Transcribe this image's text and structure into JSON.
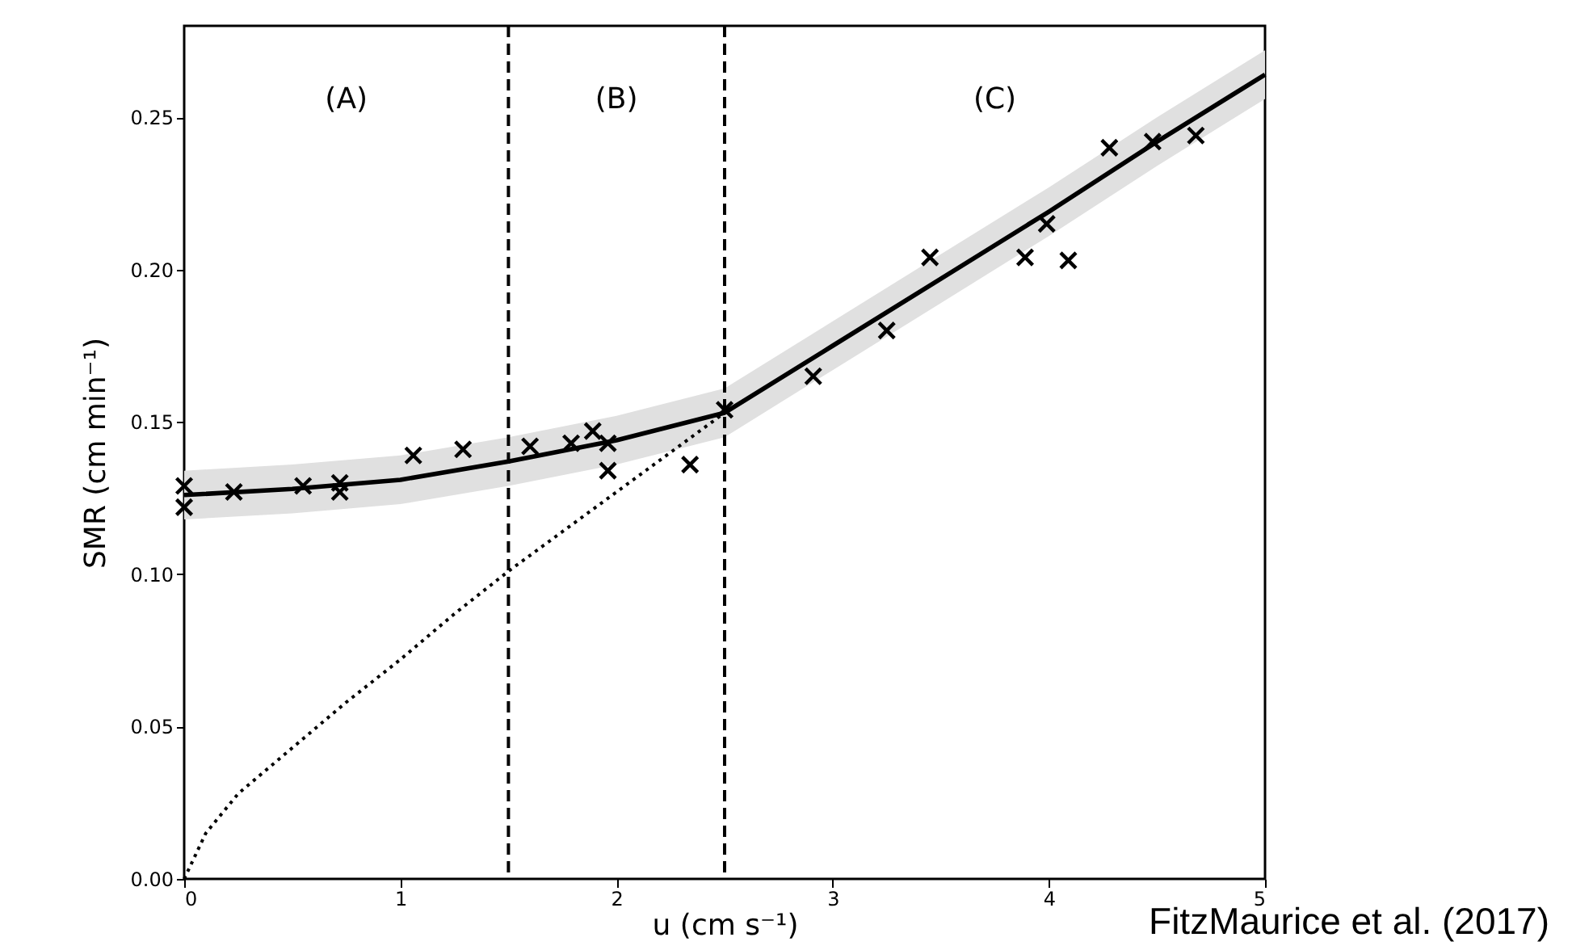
{
  "chart_data": {
    "type": "scatter",
    "xlabel": "u (cm s⁻¹)",
    "ylabel": "SMR (cm min⁻¹)",
    "xlim": [
      0,
      5
    ],
    "ylim": [
      0,
      0.28
    ],
    "xticks": [
      0,
      1,
      2,
      3,
      4,
      5
    ],
    "yticks": [
      {
        "value": 0,
        "label": "0.00"
      },
      {
        "value": 0.05,
        "label": "0.05"
      },
      {
        "value": 0.1,
        "label": "0.10"
      },
      {
        "value": 0.15,
        "label": "0.15"
      },
      {
        "value": 0.2,
        "label": "0.20"
      },
      {
        "value": 0.25,
        "label": "0.25"
      }
    ],
    "grid": false,
    "series": [
      {
        "type": "line",
        "color": "#000000",
        "x": [
          0,
          0.5,
          1,
          1.5,
          2,
          2.5,
          3,
          3.5,
          4,
          4.5,
          5
        ],
        "values": [
          0.126,
          0.128,
          0.131,
          0.137,
          0.144,
          0.153,
          0.175,
          0.197,
          0.219,
          0.242,
          0.264
        ],
        "lower": [
          0.118,
          0.12,
          0.123,
          0.129,
          0.136,
          0.145,
          0.167,
          0.189,
          0.211,
          0.234,
          0.256
        ],
        "upper": [
          0.134,
          0.136,
          0.139,
          0.145,
          0.152,
          0.161,
          0.183,
          0.205,
          0.227,
          0.25,
          0.272
        ],
        "line_style": "solid"
      },
      {
        "type": "line",
        "color": "#000000",
        "x": [
          0,
          0.1,
          0.25,
          0.5,
          0.75,
          1,
          1.25,
          1.5,
          2,
          2.5
        ],
        "values": [
          0,
          0.015,
          0.028,
          0.043,
          0.058,
          0.072,
          0.087,
          0.101,
          0.127,
          0.153
        ],
        "line_style": "dotted"
      },
      {
        "color": "#000000",
        "marker": "cross",
        "x": [
          0,
          0,
          0.23,
          0.55,
          0.72,
          0.72,
          1.06,
          1.29,
          1.6,
          1.79,
          1.89,
          1.96,
          1.96,
          2.34,
          2.5,
          2.91,
          3.25,
          3.45,
          3.89,
          3.99,
          4.09,
          4.28,
          4.48,
          4.68
        ],
        "values": [
          0.129,
          0.122,
          0.127,
          0.129,
          0.13,
          0.127,
          0.139,
          0.141,
          0.142,
          0.143,
          0.147,
          0.143,
          0.134,
          0.136,
          0.154,
          0.165,
          0.18,
          0.204,
          0.204,
          0.215,
          0.203,
          0.24,
          0.242,
          0.244
        ]
      }
    ],
    "ref_lines": [
      {
        "axis": "x",
        "value": 1.5,
        "line_style": "dashed",
        "color": "#000000"
      },
      {
        "axis": "x",
        "value": 2.5,
        "line_style": "dashed",
        "color": "#000000"
      }
    ],
    "annotations": [
      "(A)",
      "(B)",
      "(C)",
      "FitzMaurice  et al. (2017)"
    ]
  }
}
